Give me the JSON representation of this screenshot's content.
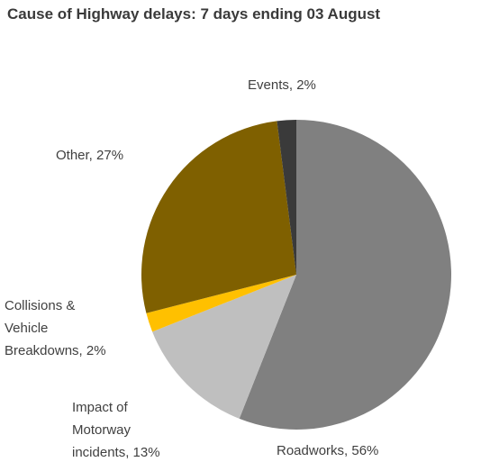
{
  "chart_data": {
    "type": "pie",
    "title": "Cause of Highway delays: 7 days ending 03 August",
    "values": [
      56,
      13,
      2,
      27,
      2
    ],
    "value_labels": [
      "Roadworks, 56%",
      "Impact of Motorway incidents, 13%",
      "Collisions & Vehicle Breakdowns, 2%",
      "Other, 27%",
      "Events, 2%"
    ],
    "colors": [
      "#808080",
      "#bfbfbf",
      "#ffc000",
      "#7f6000",
      "#3a3a3a"
    ]
  }
}
